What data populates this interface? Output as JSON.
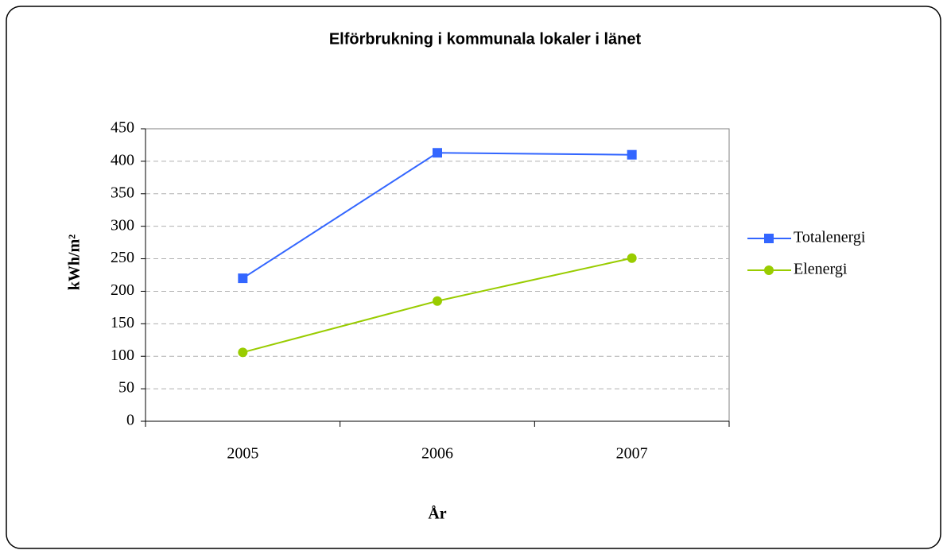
{
  "chart_data": {
    "type": "line",
    "title": "Elförbrukning i kommunala lokaler i länet",
    "x_label": "År",
    "y_label": "kWh/m²",
    "categories": [
      "2005",
      "2006",
      "2007"
    ],
    "series": [
      {
        "name": "Totalenergi",
        "color": "#3366ff",
        "marker": "square",
        "values": [
          220,
          413,
          410
        ]
      },
      {
        "name": "Elenergi",
        "color": "#99cc00",
        "marker": "circle",
        "values": [
          106,
          185,
          251
        ]
      }
    ],
    "ylim": [
      0,
      450
    ],
    "yticks": [
      0,
      50,
      100,
      150,
      200,
      250,
      300,
      350,
      400,
      450
    ],
    "grid": true,
    "legend": "right"
  }
}
